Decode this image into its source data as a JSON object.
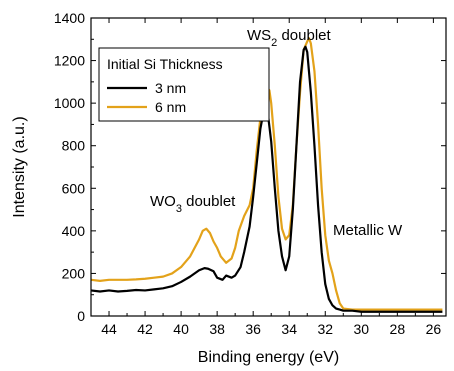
{
  "chart_data": {
    "type": "line",
    "xlabel": "Binding energy (eV)",
    "ylabel": "Intensity (a.u.)",
    "xlim": [
      45,
      25.3
    ],
    "x_reversed": true,
    "ylim": [
      0,
      1400
    ],
    "xticks": [
      44,
      42,
      40,
      38,
      36,
      34,
      32,
      30,
      28,
      26
    ],
    "yticks": [
      0,
      200,
      400,
      600,
      800,
      1000,
      1200,
      1400
    ],
    "legend": {
      "title": "Initial Si Thickness",
      "position": "top-left"
    },
    "annotations": [
      {
        "id": "wo3",
        "text": "WO",
        "sub": "3",
        "tail": " doublet"
      },
      {
        "id": "ws2",
        "text": "WS",
        "sub": "2",
        "tail": " doublet"
      },
      {
        "id": "metallic",
        "text": "Metallic W",
        "sub": "",
        "tail": ""
      }
    ],
    "series": [
      {
        "name": "3 nm",
        "color": "#000000",
        "x": [
          45,
          44.5,
          44,
          43.5,
          43,
          42.5,
          42,
          41.5,
          41,
          40.5,
          40,
          39.5,
          39,
          38.7,
          38.5,
          38.2,
          38,
          37.7,
          37.5,
          37.2,
          37,
          36.7,
          36.5,
          36.2,
          36,
          35.8,
          35.6,
          35.4,
          35.3,
          35.2,
          35,
          34.8,
          34.6,
          34.4,
          34.2,
          34,
          33.8,
          33.6,
          33.4,
          33.2,
          33.1,
          33,
          32.8,
          32.6,
          32.4,
          32.2,
          32,
          31.8,
          31.6,
          31.4,
          31.2,
          31,
          30.5,
          30,
          29,
          28,
          27,
          26,
          25.5
        ],
        "y": [
          120,
          115,
          120,
          115,
          118,
          122,
          120,
          125,
          130,
          140,
          160,
          185,
          215,
          225,
          222,
          210,
          180,
          170,
          190,
          180,
          190,
          230,
          300,
          420,
          560,
          720,
          880,
          970,
          985,
          960,
          820,
          600,
          400,
          280,
          215,
          280,
          500,
          800,
          1100,
          1250,
          1265,
          1240,
          1050,
          800,
          520,
          300,
          150,
          80,
          50,
          35,
          30,
          25,
          25,
          20,
          20,
          20,
          20,
          20,
          20
        ]
      },
      {
        "name": "6 nm",
        "color": "#E3A21A",
        "x": [
          45,
          44.5,
          44,
          43.5,
          43,
          42.5,
          42,
          41.5,
          41,
          40.5,
          40,
          39.5,
          39,
          38.8,
          38.6,
          38.4,
          38.2,
          38,
          37.8,
          37.5,
          37.2,
          37,
          36.8,
          36.5,
          36.2,
          36,
          35.8,
          35.6,
          35.4,
          35.2,
          35.1,
          35,
          34.8,
          34.6,
          34.4,
          34.2,
          34,
          33.8,
          33.6,
          33.4,
          33.2,
          33,
          32.9,
          32.8,
          32.6,
          32.4,
          32.2,
          32,
          31.8,
          31.6,
          31.4,
          31.2,
          31,
          30.5,
          30,
          29,
          28,
          27,
          26,
          25.5
        ],
        "y": [
          170,
          165,
          170,
          170,
          170,
          172,
          175,
          180,
          185,
          200,
          230,
          280,
          360,
          400,
          410,
          390,
          350,
          320,
          280,
          250,
          270,
          320,
          400,
          470,
          520,
          600,
          780,
          930,
          1030,
          1070,
          1060,
          1000,
          800,
          560,
          410,
          360,
          380,
          520,
          800,
          1050,
          1250,
          1290,
          1305,
          1280,
          1150,
          900,
          600,
          380,
          260,
          200,
          120,
          60,
          35,
          30,
          30,
          30,
          30,
          30,
          30,
          30
        ]
      }
    ]
  }
}
